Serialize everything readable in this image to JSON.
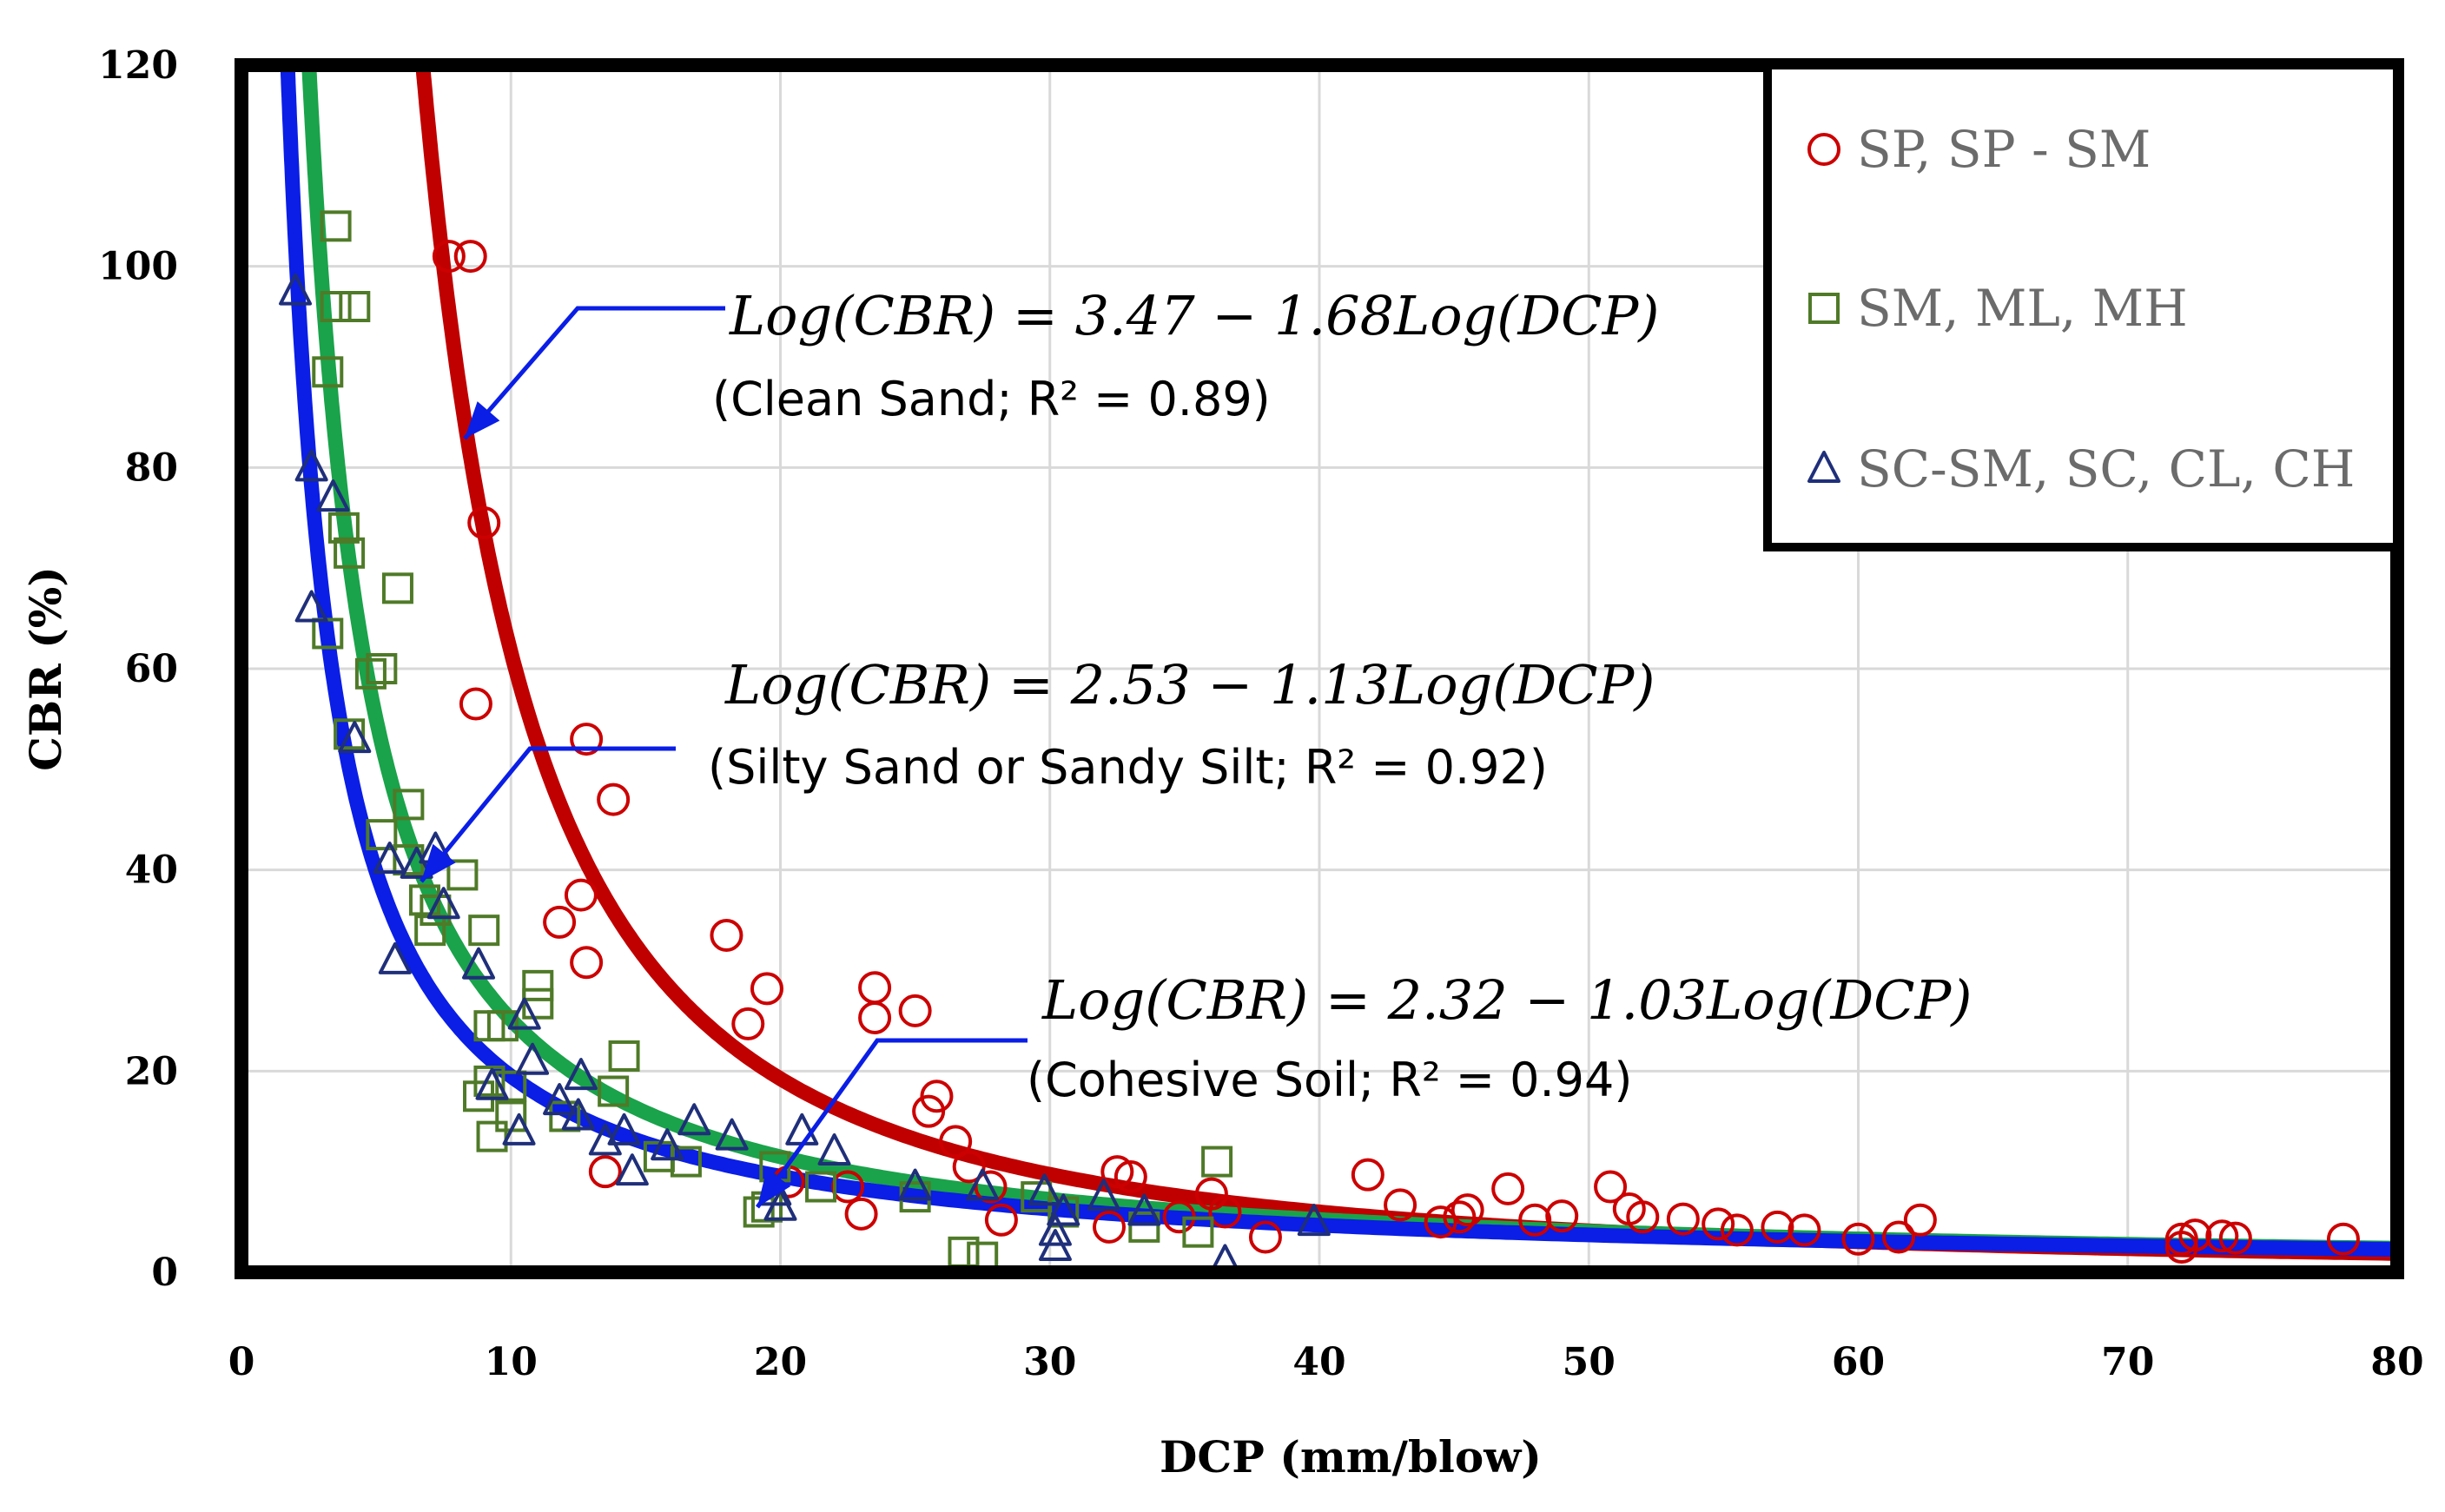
{
  "chart_data": {
    "type": "scatter",
    "title": "",
    "xlabel": "DCP (mm/blow)",
    "ylabel": "CBR (%)",
    "xlim": [
      0,
      80
    ],
    "ylim": [
      0,
      120
    ],
    "xticks": [
      "0",
      "10",
      "20",
      "30",
      "40",
      "50",
      "60",
      "70",
      "80"
    ],
    "yticks": [
      "0",
      "20",
      "40",
      "60",
      "80",
      "100",
      "120"
    ],
    "grid": "on",
    "legend_position": "top-right",
    "series": [
      {
        "name": "SP, SP - SM",
        "marker": "circle",
        "color": "#cc0000",
        "fit": {
          "a": 3.47,
          "b": 1.68,
          "color": "#c00000",
          "equation": "Log(CBR) = 3.47 − 1.68Log(DCP)",
          "note": "(Clean Sand; R² = 0.89)"
        },
        "points": [
          [
            7.7,
            101
          ],
          [
            8.5,
            101
          ],
          [
            9,
            74.5
          ],
          [
            8.7,
            56.5
          ],
          [
            12.8,
            53
          ],
          [
            13.8,
            47
          ],
          [
            12.6,
            37.5
          ],
          [
            11.8,
            34.8
          ],
          [
            12.8,
            30.8
          ],
          [
            13.5,
            10
          ],
          [
            18,
            33.5
          ],
          [
            19.5,
            28.2
          ],
          [
            18.8,
            24.7
          ],
          [
            20.3,
            9
          ],
          [
            22.5,
            8.5
          ],
          [
            23,
            5.8
          ],
          [
            23.5,
            28.3
          ],
          [
            23.5,
            25.3
          ],
          [
            25,
            26
          ],
          [
            25.8,
            17.5
          ],
          [
            25.5,
            16
          ],
          [
            26.5,
            13
          ],
          [
            27,
            10.5
          ],
          [
            27.8,
            8.5
          ],
          [
            28.2,
            5.2
          ],
          [
            32.2,
            4.5
          ],
          [
            32.5,
            10
          ],
          [
            33,
            9.5
          ],
          [
            34.8,
            5.5
          ],
          [
            36,
            7.8
          ],
          [
            36.5,
            6
          ],
          [
            38,
            3.5
          ],
          [
            41.8,
            9.7
          ],
          [
            43,
            6.7
          ],
          [
            44.5,
            5
          ],
          [
            45.2,
            5.5
          ],
          [
            45.5,
            6.2
          ],
          [
            47,
            8.3
          ],
          [
            48,
            5.2
          ],
          [
            49,
            5.6
          ],
          [
            50.8,
            8.5
          ],
          [
            51.5,
            6.3
          ],
          [
            52,
            5.5
          ],
          [
            53.5,
            5.3
          ],
          [
            54.8,
            4.8
          ],
          [
            55.5,
            4.2
          ],
          [
            57,
            4.5
          ],
          [
            58,
            4.2
          ],
          [
            60,
            3.3
          ],
          [
            61.5,
            3.5
          ],
          [
            62.3,
            5.2
          ],
          [
            72,
            3.3
          ],
          [
            72,
            2.5
          ],
          [
            72.5,
            3.7
          ],
          [
            73.5,
            3.6
          ],
          [
            74,
            3.4
          ],
          [
            78,
            3.3
          ]
        ]
      },
      {
        "name": "SM, ML, MH",
        "marker": "square",
        "color": "#4f7a28",
        "fit": {
          "a": 2.53,
          "b": 1.13,
          "color": "#1aa34a",
          "equation": "Log(CBR) = 2.53 − 1.13Log(DCP)",
          "note": "(Silty Sand or Sandy Silt; R² = 0.92)"
        },
        "points": [
          [
            3.5,
            104
          ],
          [
            3.5,
            96
          ],
          [
            4.2,
            96
          ],
          [
            3.2,
            89.5
          ],
          [
            3.8,
            74
          ],
          [
            4,
            71.5
          ],
          [
            3.2,
            63.5
          ],
          [
            5.8,
            68
          ],
          [
            5.2,
            60
          ],
          [
            4.8,
            59.5
          ],
          [
            4,
            53.5
          ],
          [
            6.2,
            46.5
          ],
          [
            5.2,
            43.5
          ],
          [
            6.2,
            41
          ],
          [
            8.2,
            39.5
          ],
          [
            6.8,
            37
          ],
          [
            7,
            34
          ],
          [
            9,
            34
          ],
          [
            7.2,
            36
          ],
          [
            11,
            28.5
          ],
          [
            11,
            26.7
          ],
          [
            9.2,
            24.5
          ],
          [
            9.7,
            24.5
          ],
          [
            9.2,
            19
          ],
          [
            8.8,
            17.5
          ],
          [
            10,
            18.5
          ],
          [
            10,
            15.5
          ],
          [
            9.3,
            13.5
          ],
          [
            12,
            15.5
          ],
          [
            13.8,
            18
          ],
          [
            14.2,
            21.5
          ],
          [
            15.5,
            11.5
          ],
          [
            16.5,
            11
          ],
          [
            19.8,
            10.5
          ],
          [
            19.5,
            6.5
          ],
          [
            19.2,
            6
          ],
          [
            21.5,
            8.5
          ],
          [
            25,
            7.5
          ],
          [
            26.8,
            2
          ],
          [
            27.5,
            1.5
          ],
          [
            29.5,
            7.5
          ],
          [
            30.5,
            6
          ],
          [
            33.5,
            4.5
          ],
          [
            35.5,
            4
          ],
          [
            36.2,
            11
          ]
        ]
      },
      {
        "name": "SC-SM, SC, CL, CH",
        "marker": "triangle",
        "color": "#1f2f7a",
        "fit": {
          "a": 2.32,
          "b": 1.03,
          "color": "#0a1ee6",
          "equation": "Log(CBR) = 2.32 − 1.03Log(DCP)",
          "note": "(Cohesive Soil; R² = 0.94)"
        },
        "points": [
          [
            2,
            97.5
          ],
          [
            2.6,
            80
          ],
          [
            3.4,
            77
          ],
          [
            2.6,
            66
          ],
          [
            4.2,
            53
          ],
          [
            5.5,
            41
          ],
          [
            6.5,
            40.5
          ],
          [
            7.2,
            42
          ],
          [
            7.5,
            36.5
          ],
          [
            5.7,
            31
          ],
          [
            8.8,
            30.5
          ],
          [
            10.5,
            25.5
          ],
          [
            9.3,
            18.5
          ],
          [
            10.8,
            21
          ],
          [
            11.8,
            17
          ],
          [
            12.6,
            19.5
          ],
          [
            10.3,
            14
          ],
          [
            12.5,
            15.5
          ],
          [
            13.5,
            13
          ],
          [
            14.2,
            14
          ],
          [
            14.5,
            10
          ],
          [
            15.8,
            12.5
          ],
          [
            16.8,
            15
          ],
          [
            18.2,
            13.5
          ],
          [
            20.8,
            14
          ],
          [
            22,
            12
          ],
          [
            19.8,
            8
          ],
          [
            20,
            6.5
          ],
          [
            25,
            8.5
          ],
          [
            27.5,
            8.5
          ],
          [
            29.8,
            8
          ],
          [
            30.5,
            6
          ],
          [
            30.2,
            4
          ],
          [
            30.2,
            2.5
          ],
          [
            32,
            7.5
          ],
          [
            33.5,
            6
          ],
          [
            36.5,
            1
          ],
          [
            39.8,
            5
          ]
        ]
      }
    ]
  }
}
